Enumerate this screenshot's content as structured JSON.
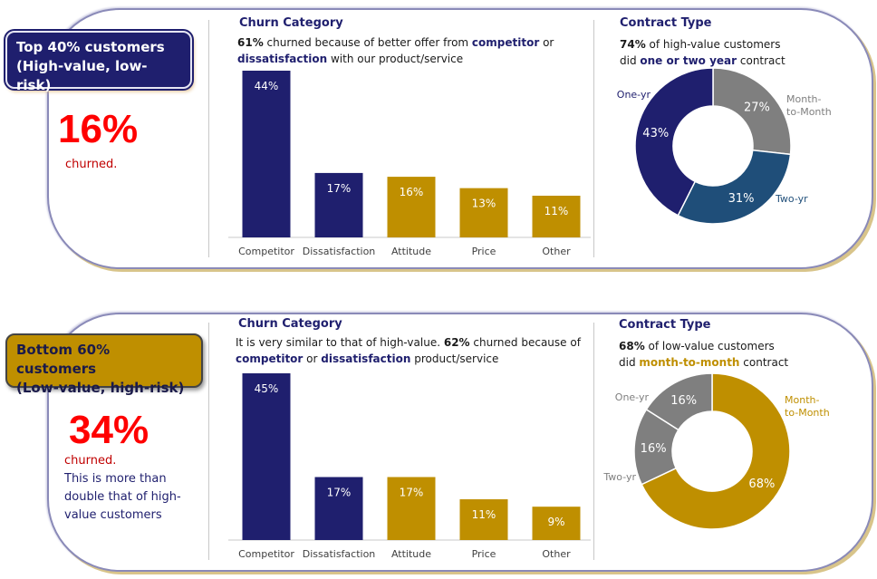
{
  "top": {
    "badge": [
      "Top 40% customers",
      "(High-value, low-risk)"
    ],
    "churn_pct": "16%",
    "churn_note": "churned.",
    "category_title": "Churn Category",
    "category_sub": {
      "pct": "61%",
      "t1": " churned because of better offer from ",
      "k1": "competitor",
      "t2": " or",
      "k2": "dissatisfaction",
      "t3": " with our product/service"
    },
    "contract_title": "Contract Type",
    "contract_sub": {
      "pct": "74%",
      "t1": " of high-value customers",
      "t2": "did ",
      "k1": "one or two year",
      "t3": " contract"
    }
  },
  "bottom": {
    "badge": [
      "Bottom 60% customers",
      "(Low-value, high-risk)"
    ],
    "churn_pct": "34%",
    "churn_note": "churned.",
    "churn_extra": "This is more than double that of high-value customers",
    "category_title": "Churn Category",
    "category_sub": {
      "t1": "It is very similar to that of high-value. ",
      "pct": "62%",
      "t2": " churned because of",
      "k1": "competitor",
      "t3": " or ",
      "k2": "dissatisfaction",
      "t4": "  product/service"
    },
    "contract_title": "Contract Type",
    "contract_sub": {
      "pct": "68%",
      "t1": " of low-value customers",
      "t2": "did ",
      "k1": "month-to-month",
      "t3": " contract"
    }
  },
  "colors": {
    "navy": "#1f1f6e",
    "gold": "#bf8f00",
    "gray": "#7f7f7f",
    "blue": "#1f4e79",
    "grid": "#c8c8c8"
  },
  "chart_data": [
    {
      "type": "bar",
      "title": "Churn Category",
      "categories": [
        "Competitor",
        "Dissatisfaction",
        "Attitude",
        "Price",
        "Other"
      ],
      "values": [
        44,
        17,
        16,
        13,
        11
      ],
      "labels": [
        "44%",
        "17%",
        "16%",
        "13%",
        "11%"
      ],
      "bar_colors": [
        "#1f1f6e",
        "#1f1f6e",
        "#bf8f00",
        "#bf8f00",
        "#bf8f00"
      ],
      "ylim": [
        0,
        44
      ]
    },
    {
      "type": "pie",
      "title": "Contract Type",
      "donut": true,
      "slices": [
        {
          "name": "Month-to-Month",
          "value": 27,
          "label": "27%",
          "color": "#7f7f7f"
        },
        {
          "name": "Two-yr",
          "value": 31,
          "label": "31%",
          "color": "#1f4e79"
        },
        {
          "name": "One-yr",
          "value": 43,
          "label": "43%",
          "color": "#1f1f6e"
        }
      ]
    },
    {
      "type": "bar",
      "title": "Churn Category",
      "categories": [
        "Competitor",
        "Dissatisfaction",
        "Attitude",
        "Price",
        "Other"
      ],
      "values": [
        45,
        17,
        17,
        11,
        9
      ],
      "labels": [
        "45%",
        "17%",
        "17%",
        "11%",
        "9%"
      ],
      "bar_colors": [
        "#1f1f6e",
        "#1f1f6e",
        "#bf8f00",
        "#bf8f00",
        "#bf8f00"
      ],
      "ylim": [
        0,
        45
      ]
    },
    {
      "type": "pie",
      "title": "Contract Type",
      "donut": true,
      "slices": [
        {
          "name": "Month-to-Month",
          "value": 68,
          "label": "68%",
          "color": "#bf8f00"
        },
        {
          "name": "Two-yr",
          "value": 16,
          "label": "16%",
          "color": "#7f7f7f"
        },
        {
          "name": "One-yr",
          "value": 16,
          "label": "16%",
          "color": "#7f7f7f"
        }
      ]
    }
  ]
}
